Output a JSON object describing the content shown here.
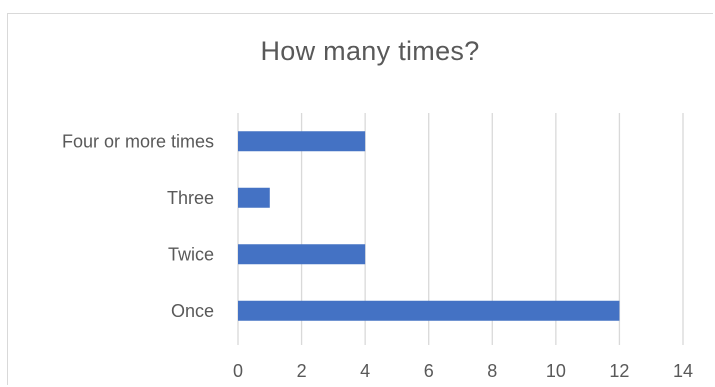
{
  "chart_data": {
    "type": "bar",
    "orientation": "horizontal",
    "title": "How many times?",
    "categories": [
      "Once",
      "Twice",
      "Three",
      "Four or more times"
    ],
    "values": [
      12,
      4,
      1,
      4
    ],
    "xlabel": "",
    "ylabel": "",
    "xlim": [
      0,
      14
    ],
    "x_ticks": [
      "0",
      "2",
      "4",
      "6",
      "8",
      "10",
      "12",
      "14"
    ],
    "grid": "vertical major gridlines",
    "legend": "none",
    "bar_color": "#4472c4",
    "gridline_color": "#d9d9d9"
  }
}
